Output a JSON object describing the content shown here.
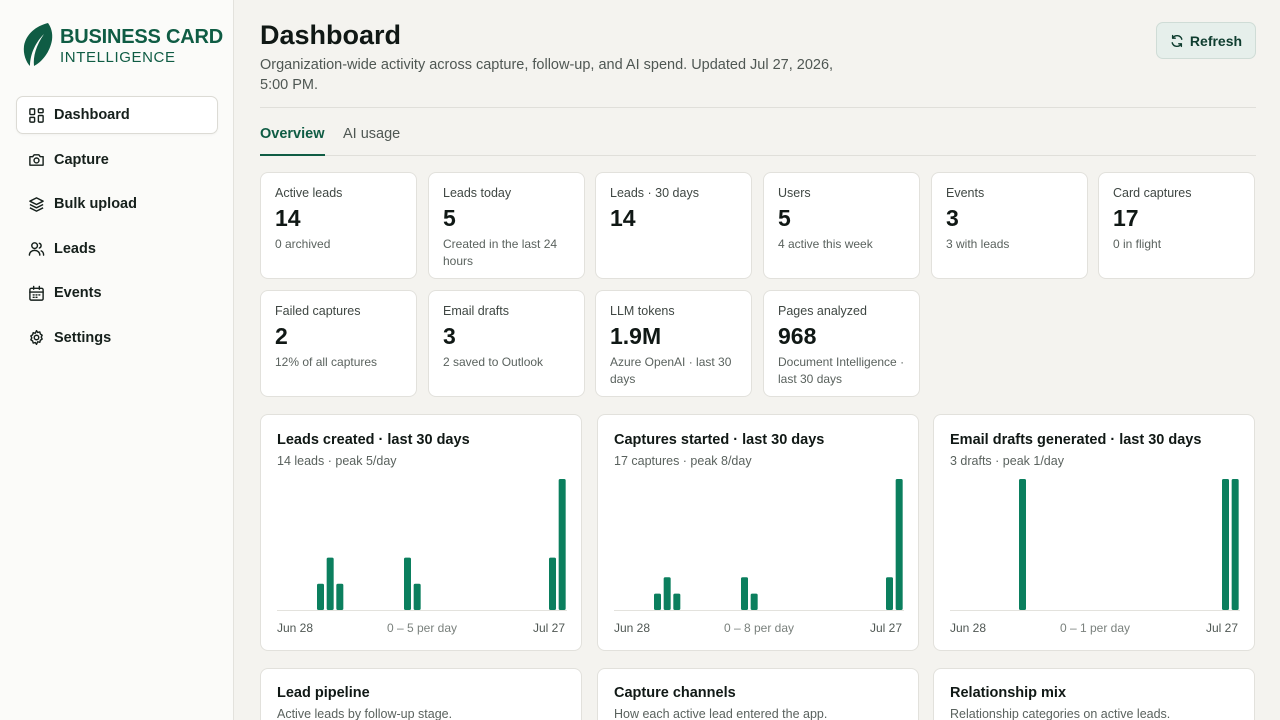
{
  "brand": {
    "line1": "BUSINESS CARD",
    "line2": "INTELLIGENCE",
    "color": "#0f5c44"
  },
  "sidebar": {
    "items": [
      {
        "label": "Dashboard",
        "icon": "dashboard-grid-icon",
        "active": true
      },
      {
        "label": "Capture",
        "icon": "camera-icon",
        "active": false
      },
      {
        "label": "Bulk upload",
        "icon": "layers-icon",
        "active": false
      },
      {
        "label": "Leads",
        "icon": "users-icon",
        "active": false
      },
      {
        "label": "Events",
        "icon": "calendar-icon",
        "active": false
      },
      {
        "label": "Settings",
        "icon": "gear-icon",
        "active": false
      }
    ]
  },
  "header": {
    "title": "Dashboard",
    "subtitle": "Organization-wide activity across capture, follow-up, and AI spend. Updated Jul 27, 2026, 5:00 PM.",
    "refresh_label": "Refresh"
  },
  "tabs": [
    {
      "label": "Overview",
      "active": true
    },
    {
      "label": "AI usage",
      "active": false
    }
  ],
  "stats": [
    {
      "label": "Active leads",
      "value": "14",
      "sub": "0 archived"
    },
    {
      "label": "Leads today",
      "value": "5",
      "sub": "Created in the last 24 hours"
    },
    {
      "label": "Leads · 30 days",
      "value": "14",
      "sub": ""
    },
    {
      "label": "Users",
      "value": "5",
      "sub": "4 active this week"
    },
    {
      "label": "Events",
      "value": "3",
      "sub": "3 with leads"
    },
    {
      "label": "Card captures",
      "value": "17",
      "sub": "0 in flight"
    },
    {
      "label": "Failed captures",
      "value": "2",
      "sub": "12% of all captures"
    },
    {
      "label": "Email drafts",
      "value": "3",
      "sub": "2 saved to Outlook"
    },
    {
      "label": "LLM tokens",
      "value": "1.9M",
      "sub": "Azure OpenAI · last 30 days"
    },
    {
      "label": "Pages analyzed",
      "value": "968",
      "sub": "Document Intelligence · last 30 days"
    }
  ],
  "chart_data": [
    {
      "type": "bar",
      "title": "Leads created · last 30 days",
      "subtitle": "14 leads · peak 5/day",
      "x_start": "Jun 28",
      "x_end": "Jul 27",
      "scale_label": "0 – 5 per day",
      "ylim": [
        0,
        5
      ],
      "values": [
        0,
        0,
        0,
        0,
        1,
        2,
        1,
        0,
        0,
        0,
        0,
        0,
        0,
        2,
        1,
        0,
        0,
        0,
        0,
        0,
        0,
        0,
        0,
        0,
        0,
        0,
        0,
        0,
        2,
        5
      ],
      "color": "#0b7f5e"
    },
    {
      "type": "bar",
      "title": "Captures started · last 30 days",
      "subtitle": "17 captures · peak 8/day",
      "x_start": "Jun 28",
      "x_end": "Jul 27",
      "scale_label": "0 – 8 per day",
      "ylim": [
        0,
        8
      ],
      "values": [
        0,
        0,
        0,
        0,
        1,
        2,
        1,
        0,
        0,
        0,
        0,
        0,
        0,
        2,
        1,
        0,
        0,
        0,
        0,
        0,
        0,
        0,
        0,
        0,
        0,
        0,
        0,
        0,
        2,
        8
      ],
      "color": "#0b7f5e"
    },
    {
      "type": "bar",
      "title": "Email drafts generated · last 30 days",
      "subtitle": "3 drafts · peak 1/day",
      "x_start": "Jun 28",
      "x_end": "Jul 27",
      "scale_label": "0 – 1 per day",
      "ylim": [
        0,
        1
      ],
      "values": [
        0,
        0,
        0,
        0,
        0,
        0,
        0,
        1,
        0,
        0,
        0,
        0,
        0,
        0,
        0,
        0,
        0,
        0,
        0,
        0,
        0,
        0,
        0,
        0,
        0,
        0,
        0,
        0,
        1,
        1
      ],
      "color": "#0b7f5e"
    }
  ],
  "bottom_cards": [
    {
      "title": "Lead pipeline",
      "sub": "Active leads by follow-up stage."
    },
    {
      "title": "Capture channels",
      "sub": "How each active lead entered the app."
    },
    {
      "title": "Relationship mix",
      "sub": "Relationship categories on active leads."
    }
  ]
}
